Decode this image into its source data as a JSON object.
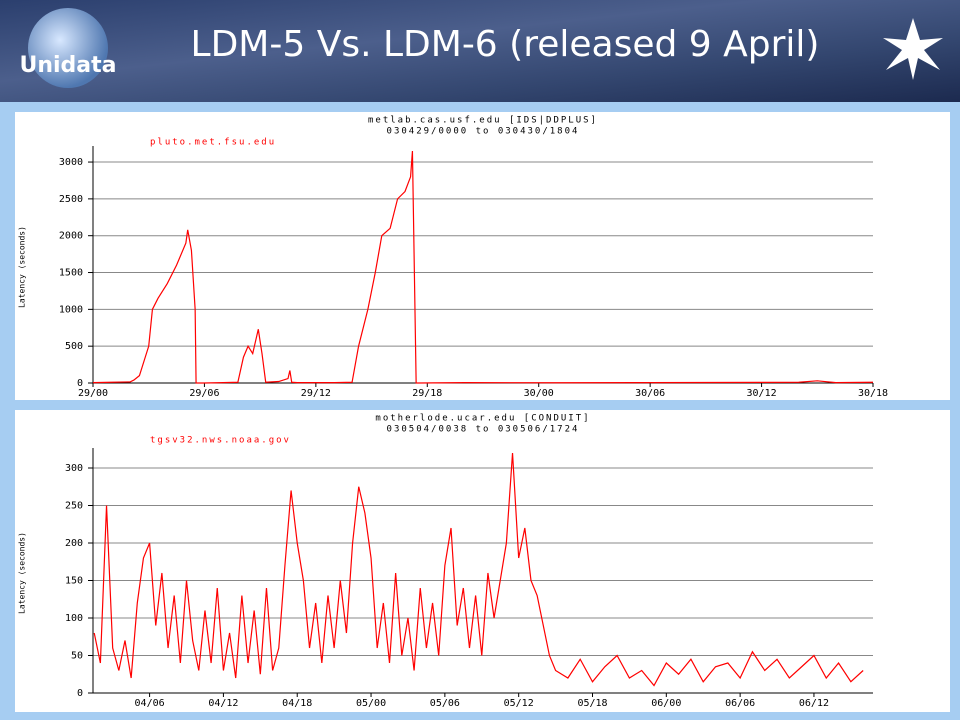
{
  "slide": {
    "title": "LDM-5 Vs. LDM-6 (released 9 April)",
    "logo": "Unidata"
  },
  "chart_data": [
    {
      "type": "line",
      "title": "metlab.cas.usf.edu [IDS|DDPLUS]",
      "subtitle": "030429/0000 to 030430/1804",
      "ylabel": "Latency (seconds)",
      "x": [
        0,
        1,
        2,
        2.2,
        2.5,
        3,
        3.2,
        3.5,
        4,
        4.5,
        5,
        5.1,
        5.3,
        5.5,
        5.55,
        6,
        7,
        7.8,
        8.1,
        8.35,
        8.6,
        8.9,
        9.1,
        9.3,
        10,
        10.5,
        10.6,
        10.7,
        11,
        12,
        13,
        13.95,
        14.3,
        14.8,
        15.2,
        15.55,
        16,
        16.4,
        16.8,
        17.1,
        17.2,
        17.4,
        17.5,
        20,
        25,
        30,
        38,
        39,
        40,
        42
      ],
      "series": [
        {
          "name": "pluto.met.fsu.edu",
          "color": "#ff0000",
          "values": [
            5,
            10,
            15,
            40,
            100,
            500,
            1000,
            1150,
            1350,
            1600,
            1900,
            2080,
            1800,
            1000,
            0,
            0,
            5,
            10,
            350,
            500,
            400,
            730,
            400,
            10,
            20,
            60,
            170,
            10,
            5,
            5,
            5,
            10,
            500,
            1000,
            1500,
            2000,
            2100,
            2500,
            2600,
            2800,
            3150,
            0,
            0,
            5,
            3,
            5,
            10,
            30,
            5,
            10
          ]
        }
      ],
      "xlim": [
        0,
        42
      ],
      "ylim": [
        0,
        3150
      ],
      "xticks": [
        {
          "value": 0,
          "label": "29/00"
        },
        {
          "value": 6,
          "label": "29/06"
        },
        {
          "value": 12,
          "label": "29/12"
        },
        {
          "value": 18,
          "label": "29/18"
        },
        {
          "value": 24,
          "label": "30/00"
        },
        {
          "value": 30,
          "label": "30/06"
        },
        {
          "value": 36,
          "label": "30/12"
        },
        {
          "value": 42,
          "label": "30/18"
        }
      ],
      "yticks": [
        0,
        500,
        1000,
        1500,
        2000,
        2500,
        3000
      ],
      "grid": true
    },
    {
      "type": "line",
      "title": "motherlode.ucar.edu [CONDUIT]",
      "subtitle": "030504/0038 to 030506/1724",
      "ylabel": "Latency (seconds)",
      "x": [
        1.5,
        2,
        2.5,
        3,
        3.5,
        4,
        4.5,
        5,
        5.5,
        6,
        6.5,
        7,
        7.5,
        8,
        8.5,
        9,
        9.5,
        10,
        10.5,
        11,
        11.5,
        12,
        12.5,
        13,
        13.5,
        14,
        14.5,
        15,
        15.5,
        16,
        16.5,
        17,
        17.5,
        18,
        18.5,
        19,
        19.5,
        20,
        20.5,
        21,
        21.5,
        22,
        22.5,
        23,
        23.5,
        24,
        24.5,
        25,
        25.5,
        26,
        26.5,
        27,
        27.5,
        28,
        28.5,
        29,
        29.5,
        30,
        30.5,
        31,
        31.5,
        32,
        32.5,
        33,
        33.5,
        34,
        34.5,
        35,
        35.5,
        36,
        36.5,
        37,
        37.5,
        38,
        38.5,
        39,
        40,
        41,
        42,
        43,
        44,
        45,
        46,
        47,
        48,
        49,
        50,
        51,
        52,
        53,
        54,
        55,
        56,
        57,
        58,
        59,
        60,
        61,
        62,
        63,
        64
      ],
      "series": [
        {
          "name": "tgsv32.nws.noaa.gov",
          "color": "#ff0000",
          "values": [
            80,
            40,
            250,
            60,
            30,
            70,
            20,
            120,
            180,
            200,
            90,
            160,
            60,
            130,
            40,
            150,
            70,
            30,
            110,
            40,
            140,
            30,
            80,
            20,
            130,
            40,
            110,
            25,
            140,
            30,
            60,
            170,
            270,
            200,
            150,
            60,
            120,
            40,
            130,
            60,
            150,
            80,
            200,
            275,
            240,
            180,
            60,
            120,
            40,
            160,
            50,
            100,
            30,
            140,
            60,
            120,
            50,
            170,
            220,
            90,
            140,
            60,
            130,
            50,
            160,
            100,
            150,
            200,
            320,
            180,
            220,
            150,
            130,
            90,
            50,
            30,
            20,
            45,
            15,
            35,
            50,
            20,
            30,
            10,
            40,
            25,
            45,
            15,
            35,
            40,
            20,
            55,
            30,
            45,
            20,
            35,
            50,
            20,
            40,
            15,
            30
          ]
        }
      ],
      "xlim": [
        1.4,
        64.8
      ],
      "ylim": [
        0,
        320
      ],
      "xticks": [
        {
          "value": 6,
          "label": "04/06"
        },
        {
          "value": 12,
          "label": "04/12"
        },
        {
          "value": 18,
          "label": "04/18"
        },
        {
          "value": 24,
          "label": "05/00"
        },
        {
          "value": 30,
          "label": "05/06"
        },
        {
          "value": 36,
          "label": "05/12"
        },
        {
          "value": 42,
          "label": "05/18"
        },
        {
          "value": 48,
          "label": "06/00"
        },
        {
          "value": 54,
          "label": "06/06"
        },
        {
          "value": 60,
          "label": "06/12"
        }
      ],
      "yticks": [
        0,
        50,
        100,
        150,
        200,
        250,
        300
      ],
      "grid": true
    }
  ]
}
